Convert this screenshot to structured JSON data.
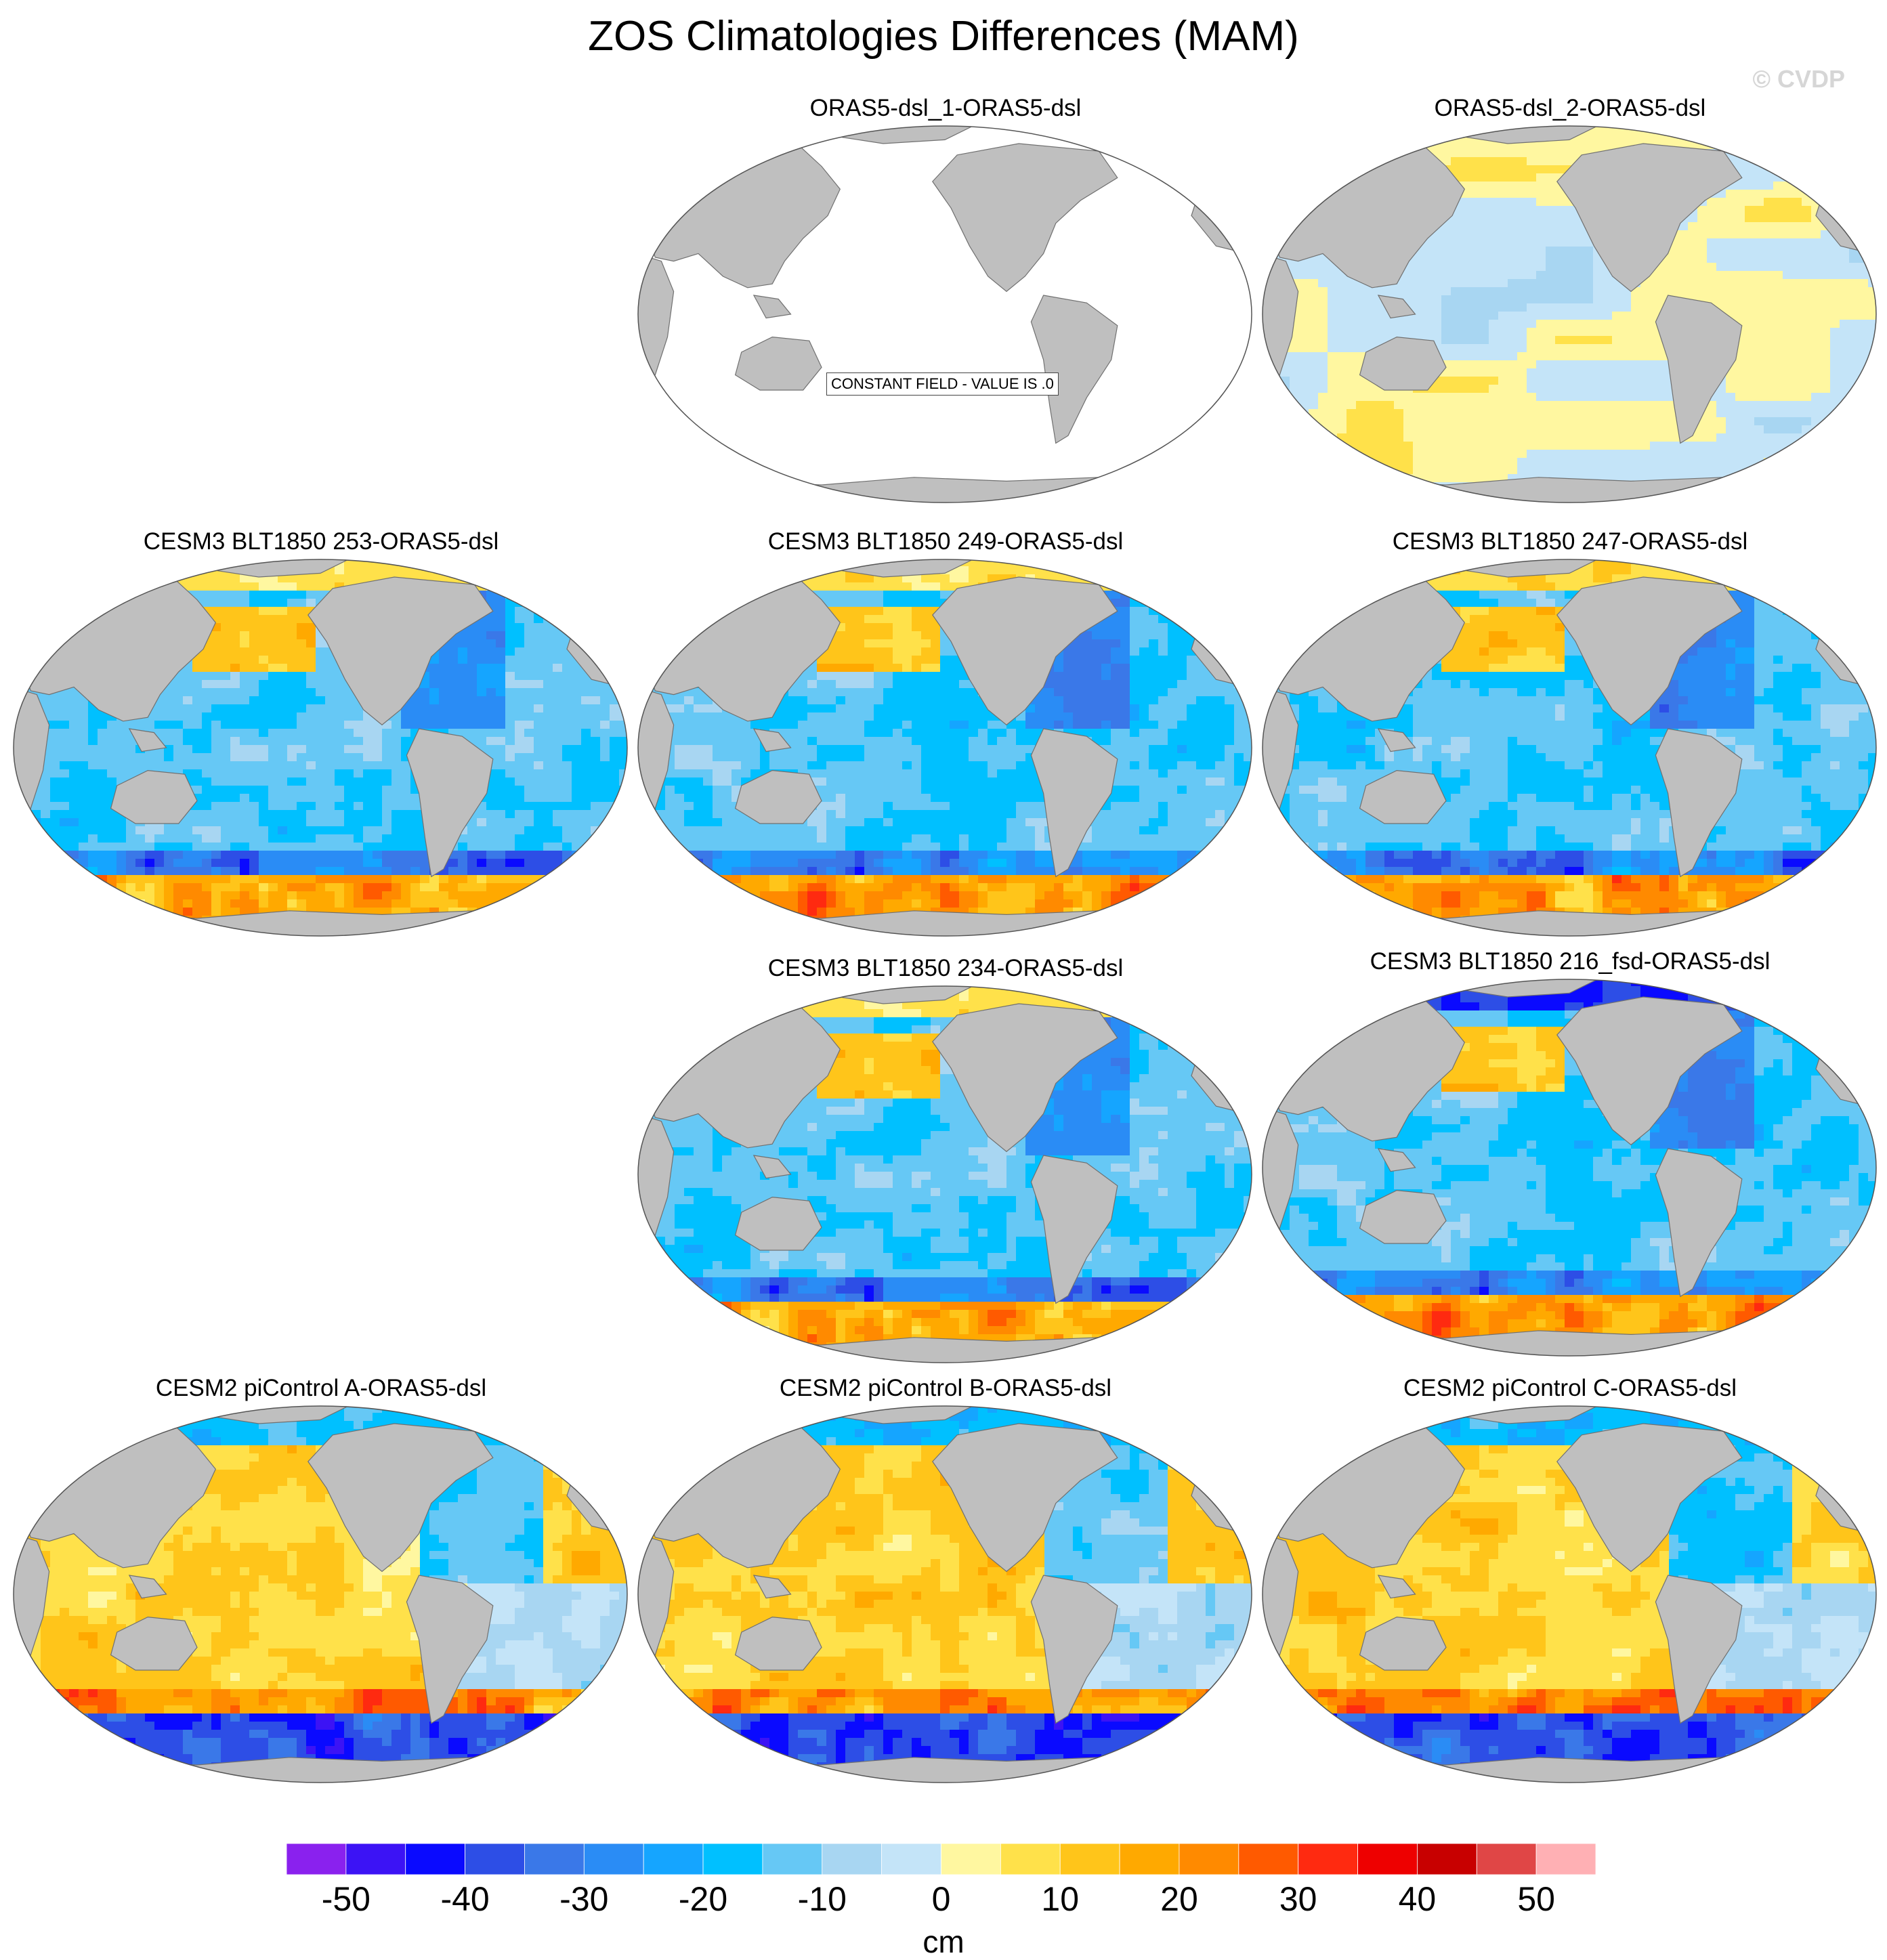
{
  "figure": {
    "title": "ZOS Climatologies Differences (MAM)",
    "watermark": "© CVDP"
  },
  "panels": [
    {
      "title": "ORAS5-dsl_1-ORAS5-dsl",
      "pattern": "constant",
      "note": "CONSTANT FIELD - VALUE IS .0"
    },
    {
      "title": "ORAS5-dsl_2-ORAS5-dsl",
      "pattern": "near-zero"
    },
    {
      "title": "CESM3 BLT1850 253-ORAS5-dsl",
      "pattern": "cesm3"
    },
    {
      "title": "CESM3 BLT1850 249-ORAS5-dsl",
      "pattern": "cesm3"
    },
    {
      "title": "CESM3 BLT1850 247-ORAS5-dsl",
      "pattern": "cesm3"
    },
    {
      "title": "CESM3 BLT1850 234-ORAS5-dsl",
      "pattern": "cesm3"
    },
    {
      "title": "CESM3 BLT1850 216_fsd-ORAS5-dsl",
      "pattern": "cesm3-fsd"
    },
    {
      "title": "CESM2 piControl A-ORAS5-dsl",
      "pattern": "cesm2"
    },
    {
      "title": "CESM2 piControl B-ORAS5-dsl",
      "pattern": "cesm2"
    },
    {
      "title": "CESM2 piControl C-ORAS5-dsl",
      "pattern": "cesm2"
    }
  ],
  "colorbar": {
    "units": "cm",
    "tick_labels": [
      "-50",
      "-40",
      "-30",
      "-20",
      "-10",
      "0",
      "10",
      "20",
      "30",
      "40",
      "50"
    ],
    "colors": [
      "#8a21ee",
      "#3c13f5",
      "#0a0aff",
      "#2d4ee6",
      "#3a78e8",
      "#2a8cf5",
      "#15a5ff",
      "#00c0ff",
      "#66c8f5",
      "#a8d6f2",
      "#c4e4f8",
      "#fff7a0",
      "#ffe14a",
      "#ffc51a",
      "#ffa900",
      "#ff8a00",
      "#ff5a00",
      "#ff2a10",
      "#ee0000",
      "#c80000",
      "#e04646",
      "#ffb0b4"
    ]
  },
  "map_style": {
    "land_color": "#bfbfbf",
    "coast_color": "#707070",
    "empty_ocean": "#ffffff"
  }
}
